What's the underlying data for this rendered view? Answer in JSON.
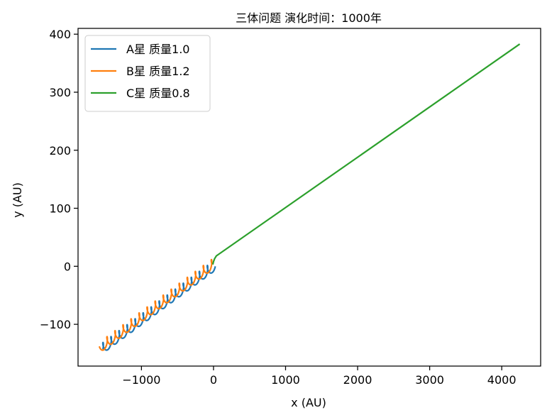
{
  "chart_data": {
    "type": "line",
    "title": "三体问题 演化时间：1000年",
    "xlabel": "x (AU)",
    "ylabel": "y (AU)",
    "xlim": [
      -1880,
      4540
    ],
    "ylim": [
      -172,
      410
    ],
    "xticks": [
      -1000,
      0,
      1000,
      2000,
      3000,
      4000
    ],
    "xtick_labels": [
      "−1000",
      "0",
      "1000",
      "2000",
      "3000",
      "4000"
    ],
    "yticks": [
      -100,
      0,
      100,
      200,
      300,
      400
    ],
    "ytick_labels": [
      "−100",
      "0",
      "100",
      "200",
      "300",
      "400"
    ],
    "grid": false,
    "legend_position": "top-left",
    "series": [
      {
        "name": "A星 质量1.0",
        "color": "#1f77b4",
        "kind": "oscillating",
        "x_start": -1560,
        "x_end": 0,
        "y_start": -143,
        "y_end": 0,
        "loops": 14,
        "amplitude": 9,
        "phase": 0
      },
      {
        "name": "B星 质量1.2",
        "color": "#ff7f0e",
        "kind": "oscillating",
        "x_start": -1560,
        "x_end": 0,
        "y_start": -138,
        "y_end": 5,
        "loops": 14,
        "amplitude": 9,
        "phase": 3.14159
      },
      {
        "name": "C星 质量0.8",
        "color": "#2ca02c",
        "kind": "polyline",
        "x": [
          -10,
          0,
          15,
          40,
          4250
        ],
        "y": [
          3,
          8,
          13,
          18,
          383
        ]
      }
    ]
  }
}
